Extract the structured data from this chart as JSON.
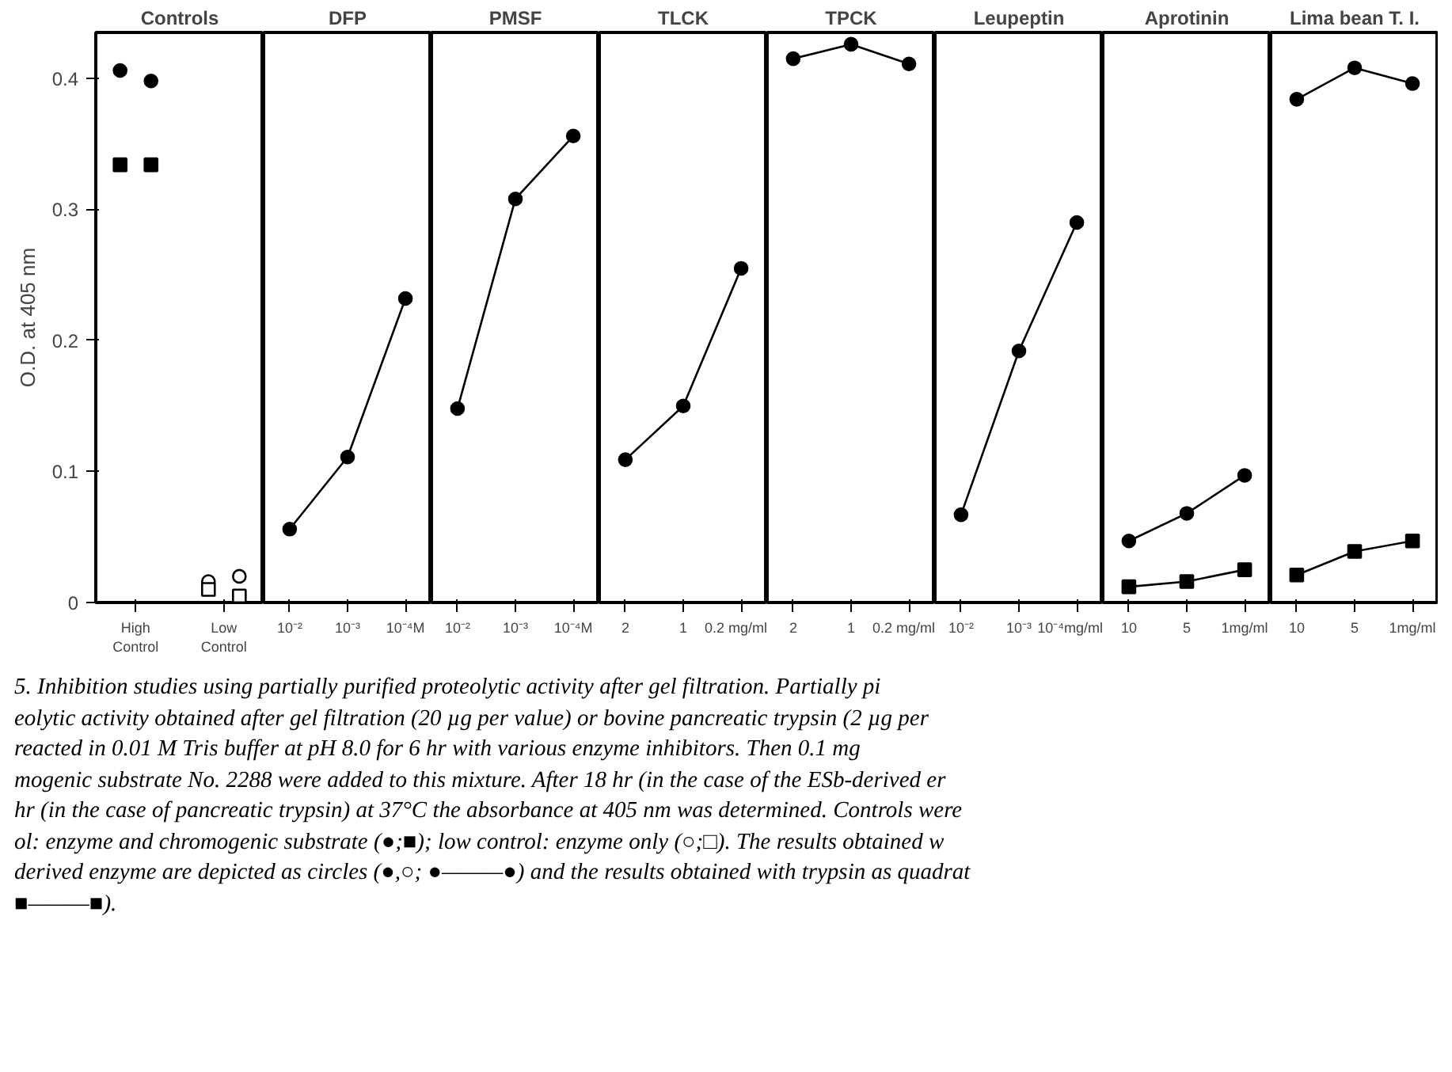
{
  "chart_data": [
    {
      "type": "scatter",
      "title": "Controls",
      "ylabel": "O.D. at 405 nm",
      "categories": [
        "High\nControl",
        "Low\nControl"
      ],
      "ylim": [
        0,
        0.435
      ],
      "yticks": [
        0,
        0.1,
        0.2,
        0.3,
        0.4
      ],
      "series": [
        {
          "color": "#000000",
          "marker": "circle",
          "colors": [
            "#000000",
            "#ffffff"
          ],
          "values": [
            0.406,
            0.016
          ]
        },
        {
          "color": "#000000",
          "marker": "square",
          "colors": [
            "#000000",
            "#ffffff"
          ],
          "values": [
            0.334,
            0.01
          ]
        },
        {
          "color": "#000000",
          "marker": "circle",
          "colors": [
            "#000000",
            "#ffffff"
          ],
          "values": [
            0.398,
            0.02
          ]
        },
        {
          "color": "#000000",
          "marker": "square",
          "colors": [
            "#000000",
            "#ffffff"
          ],
          "values": [
            0.334,
            0.005
          ]
        }
      ],
      "annotations": [
        "5.  Inhibition studies using partially purified proteolytic activity after gel filtration. Partially pi",
        "eolytic activity obtained after gel filtration (20 µg per value) or bovine pancreatic trypsin (2 µg per",
        " reacted in 0.01 M Tris buffer at pH 8.0 for 6 hr with various enzyme inhibitors. Then 0.1 mg",
        "mogenic substrate No. 2288 were added to this mixture. After 18 hr (in the case of the ESb-derived er",
        "hr (in the case of pancreatic trypsin) at 37°C the absorbance at 405 nm was determined. Controls were",
        "ol: enzyme and chromogenic substrate (●;■); low control: enzyme only (○;□). The results obtained w",
        "derived enzyme are depicted as circles (●,○; ●———●) and the results obtained with trypsin as quadrat",
        "■———■)."
      ]
    },
    {
      "type": "line",
      "title": "DFP",
      "categories": [
        "10⁻²",
        "10⁻³",
        "10⁻⁴M"
      ],
      "ylim": [
        0,
        0.435
      ],
      "tick_labels": "x",
      "series": [
        {
          "color": "#000000",
          "marker": "circle",
          "values": [
            0.056,
            0.111,
            0.232
          ]
        }
      ]
    },
    {
      "type": "line",
      "title": "PMSF",
      "categories": [
        "10⁻²",
        "10⁻³",
        "10⁻⁴M"
      ],
      "ylim": [
        0,
        0.435
      ],
      "tick_labels": "x",
      "series": [
        {
          "color": "#000000",
          "marker": "circle",
          "values": [
            0.148,
            0.308,
            0.356
          ]
        }
      ]
    },
    {
      "type": "line",
      "title": "TLCK",
      "categories": [
        "2",
        "1",
        "0.2 mg/ml"
      ],
      "ylim": [
        0,
        0.435
      ],
      "tick_labels": "x",
      "series": [
        {
          "color": "#000000",
          "marker": "circle",
          "values": [
            0.109,
            0.15,
            0.255
          ]
        }
      ]
    },
    {
      "type": "line",
      "title": "TPCK",
      "categories": [
        "2",
        "1",
        "0.2 mg/ml"
      ],
      "ylim": [
        0,
        0.435
      ],
      "tick_labels": "x",
      "series": [
        {
          "color": "#000000",
          "marker": "circle",
          "values": [
            0.415,
            0.426,
            0.411
          ]
        }
      ]
    },
    {
      "type": "line",
      "title": "Leupeptin",
      "categories": [
        "10⁻²",
        "10⁻³",
        "10⁻⁴mg/ml"
      ],
      "ylim": [
        0,
        0.435
      ],
      "tick_labels": "x",
      "series": [
        {
          "color": "#000000",
          "marker": "circle",
          "values": [
            0.067,
            0.192,
            0.29
          ]
        }
      ]
    },
    {
      "type": "line",
      "title": "Aprotinin",
      "categories": [
        "10",
        "5",
        "1mg/ml"
      ],
      "ylim": [
        0,
        0.435
      ],
      "tick_labels": "x",
      "series": [
        {
          "color": "#000000",
          "marker": "circle",
          "values": [
            0.047,
            0.068,
            0.097
          ]
        },
        {
          "color": "#000000",
          "marker": "square",
          "values": [
            0.012,
            0.016,
            0.025
          ]
        }
      ]
    },
    {
      "type": "line",
      "title": "Lima bean T. I.",
      "categories": [
        "10",
        "5",
        "1mg/ml"
      ],
      "ylim": [
        0,
        0.435
      ],
      "tick_labels": "x",
      "series": [
        {
          "color": "#000000",
          "marker": "circle",
          "values": [
            0.384,
            0.408,
            0.396
          ]
        },
        {
          "color": "#000000",
          "marker": "square",
          "values": [
            0.021,
            0.039,
            0.047
          ]
        }
      ]
    }
  ]
}
